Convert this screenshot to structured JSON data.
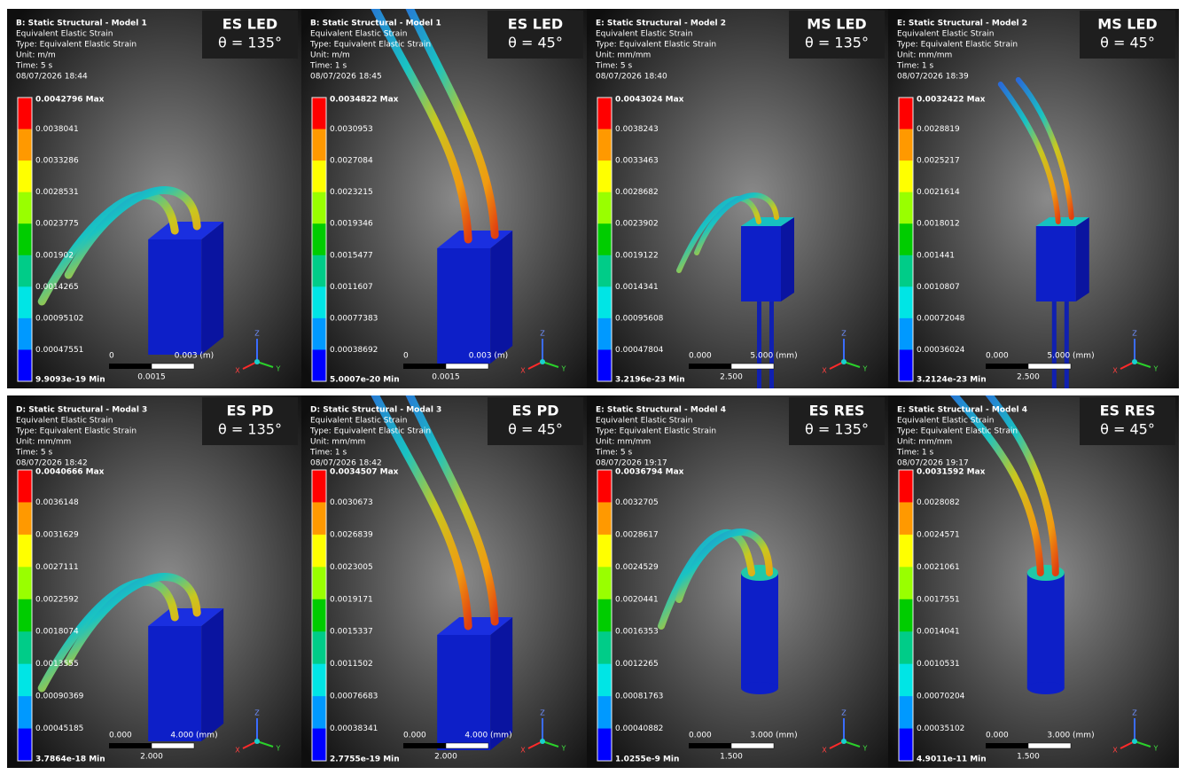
{
  "axis_labels": {
    "x": "X",
    "y": "Y",
    "z": "Z"
  },
  "panels": [
    {
      "header": [
        "B: Static Structural - Model 1",
        "Equivalent Elastic Strain",
        "Type: Equivalent Elastic Strain",
        "Unit: m/m",
        "Time: 5 s",
        "08/07/2026 18:44"
      ],
      "badge": [
        "ES LED",
        "θ = 135°"
      ],
      "legend": [
        "0.0042796 Max",
        "0.0038041",
        "0.0033286",
        "0.0028531",
        "0.0023775",
        "0.001902",
        "0.0014265",
        "0.00095102",
        "0.00047551",
        "9.9093e-19 Min"
      ],
      "scale": [
        "0",
        "0.003 (m)",
        "0.0015"
      ]
    },
    {
      "header": [
        "B: Static Structural - Model 1",
        "Equivalent Elastic Strain",
        "Type: Equivalent Elastic Strain",
        "Unit: m/m",
        "Time: 1 s",
        "08/07/2026 18:45"
      ],
      "badge": [
        "ES LED",
        "θ = 45°"
      ],
      "legend": [
        "0.0034822 Max",
        "0.0030953",
        "0.0027084",
        "0.0023215",
        "0.0019346",
        "0.0015477",
        "0.0011607",
        "0.00077383",
        "0.00038692",
        "5.0007e-20 Min"
      ],
      "scale": [
        "0",
        "0.003 (m)",
        "0.0015"
      ]
    },
    {
      "header": [
        "E: Static Structural - Model 2",
        "Equivalent Elastic Strain",
        "Type: Equivalent Elastic Strain",
        "Unit: mm/mm",
        "Time: 5 s",
        "08/07/2026 18:40"
      ],
      "badge": [
        "MS LED",
        "θ = 135°"
      ],
      "legend": [
        "0.0043024 Max",
        "0.0038243",
        "0.0033463",
        "0.0028682",
        "0.0023902",
        "0.0019122",
        "0.0014341",
        "0.00095608",
        "0.00047804",
        "3.2196e-23 Min"
      ],
      "scale": [
        "0.000",
        "5.000 (mm)",
        "2.500"
      ]
    },
    {
      "header": [
        "E: Static Structural - Model 2",
        "Equivalent Elastic Strain",
        "Type: Equivalent Elastic Strain",
        "Unit: mm/mm",
        "Time: 1 s",
        "08/07/2026 18:39"
      ],
      "badge": [
        "MS LED",
        "θ = 45°"
      ],
      "legend": [
        "0.0032422 Max",
        "0.0028819",
        "0.0025217",
        "0.0021614",
        "0.0018012",
        "0.001441",
        "0.0010807",
        "0.00072048",
        "0.00036024",
        "3.2124e-23 Min"
      ],
      "scale": [
        "0.000",
        "5.000 (mm)",
        "2.500"
      ]
    },
    {
      "header": [
        "D: Static Structural - Modal 3",
        "Equivalent Elastic Strain",
        "Type: Equivalent Elastic Strain",
        "Unit: mm/mm",
        "Time: 5 s",
        "08/07/2026 18:42"
      ],
      "badge": [
        "ES PD",
        "θ = 135°"
      ],
      "legend": [
        "0.0040666 Max",
        "0.0036148",
        "0.0031629",
        "0.0027111",
        "0.0022592",
        "0.0018074",
        "0.0013555",
        "0.00090369",
        "0.00045185",
        "3.7864e-18 Min"
      ],
      "scale": [
        "0.000",
        "4.000 (mm)",
        "2.000"
      ]
    },
    {
      "header": [
        "D: Static Structural - Modal 3",
        "Equivalent Elastic Strain",
        "Type: Equivalent Elastic Strain",
        "Unit: mm/mm",
        "Time: 1 s",
        "08/07/2026 18:42"
      ],
      "badge": [
        "ES PD",
        "θ = 45°"
      ],
      "legend": [
        "0.0034507 Max",
        "0.0030673",
        "0.0026839",
        "0.0023005",
        "0.0019171",
        "0.0015337",
        "0.0011502",
        "0.00076683",
        "0.00038341",
        "2.7755e-19 Min"
      ],
      "scale": [
        "0.000",
        "4.000 (mm)",
        "2.000"
      ]
    },
    {
      "header": [
        "E: Static Structural - Model 4",
        "Equivalent Elastic Strain",
        "Type: Equivalent Elastic Strain",
        "Unit: mm/mm",
        "Time: 5 s",
        "08/07/2026 19:17"
      ],
      "badge": [
        "ES RES",
        "θ = 135°"
      ],
      "legend": [
        "0.0036794 Max",
        "0.0032705",
        "0.0028617",
        "0.0024529",
        "0.0020441",
        "0.0016353",
        "0.0012265",
        "0.00081763",
        "0.00040882",
        "1.0255e-9 Min"
      ],
      "scale": [
        "0.000",
        "3.000 (mm)",
        "1.500"
      ]
    },
    {
      "header": [
        "E: Static Structural - Model 4",
        "Equivalent Elastic Strain",
        "Type: Equivalent Elastic Strain",
        "Unit: mm/mm",
        "Time: 1 s",
        "08/07/2026 19:17"
      ],
      "badge": [
        "ES RES",
        "θ = 45°"
      ],
      "legend": [
        "0.0031592 Max",
        "0.0028082",
        "0.0024571",
        "0.0021061",
        "0.0017551",
        "0.0014041",
        "0.0010531",
        "0.00070204",
        "0.00035102",
        "4.9011e-11 Min"
      ],
      "scale": [
        "0.000",
        "3.000 (mm)",
        "1.500"
      ]
    }
  ]
}
